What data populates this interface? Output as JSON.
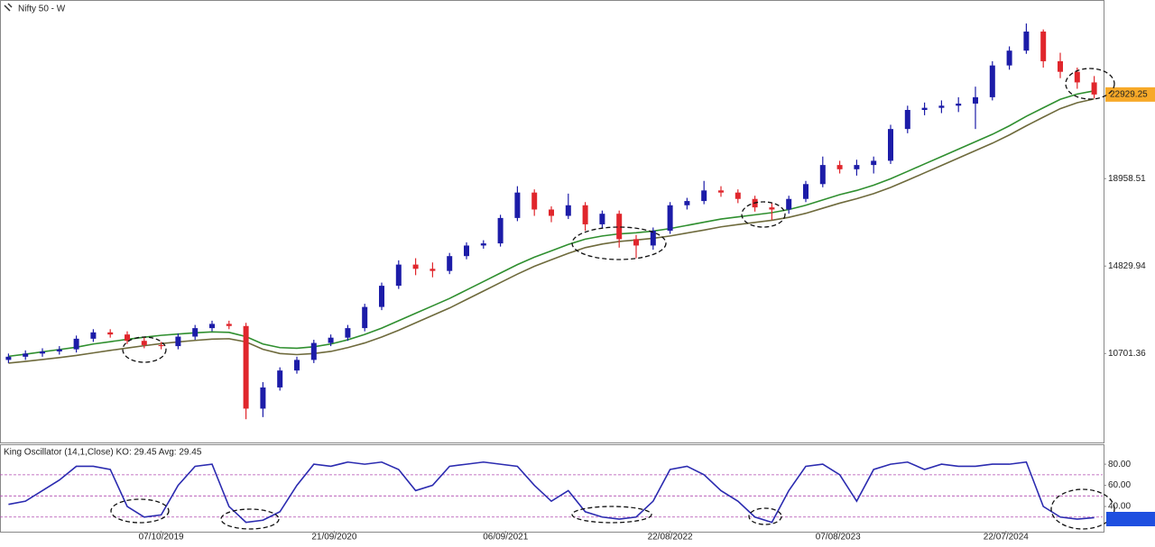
{
  "chart_data": [
    {
      "type": "candlestick",
      "title": "Nifty 50 - W",
      "up_color": "#1c1ca8",
      "down_color": "#e0262c",
      "open": [
        10400,
        10550,
        10700,
        10800,
        10900,
        11400,
        11700,
        11600,
        11300,
        11100,
        11050,
        11500,
        11900,
        12100,
        12000,
        8100,
        9100,
        9900,
        10400,
        11200,
        11450,
        11900,
        12900,
        13900,
        14900,
        14700,
        14600,
        15300,
        15800,
        15900,
        17100,
        18300,
        17500,
        17200,
        17700,
        16800,
        17300,
        16100,
        15800,
        16500,
        17700,
        17900,
        18400,
        18300,
        18000,
        17600,
        17500,
        18000,
        18700,
        19600,
        19400,
        19600,
        19800,
        21300,
        22200,
        22300,
        22400,
        22500,
        22800,
        24300,
        25000,
        25900,
        24500,
        24000,
        23500
      ],
      "high": [
        10700,
        10850,
        10950,
        11050,
        11550,
        11850,
        11850,
        11750,
        11450,
        11250,
        11650,
        12050,
        12250,
        12250,
        12150,
        9350,
        10050,
        10550,
        11350,
        11600,
        12050,
        13050,
        14050,
        15100,
        15200,
        15000,
        15450,
        15950,
        16050,
        17250,
        18600,
        18450,
        17650,
        18250,
        17850,
        17450,
        17450,
        16300,
        16650,
        17850,
        18050,
        18850,
        18600,
        18450,
        18150,
        17800,
        18150,
        18850,
        20000,
        19800,
        19850,
        20000,
        21500,
        22400,
        22550,
        22650,
        22800,
        23300,
        24500,
        25200,
        26280,
        26000,
        24900,
        24200,
        23800
      ],
      "low": [
        10250,
        10400,
        10550,
        10650,
        10750,
        11250,
        11450,
        11150,
        10950,
        10900,
        10900,
        11350,
        11750,
        11850,
        7600,
        7700,
        8950,
        9750,
        10250,
        11050,
        11300,
        11750,
        12750,
        13750,
        14400,
        14300,
        14450,
        15150,
        15650,
        15750,
        16950,
        17200,
        16900,
        17050,
        16500,
        16600,
        15700,
        15200,
        15600,
        16350,
        17500,
        17750,
        18100,
        17800,
        17400,
        17000,
        17300,
        17850,
        18550,
        19200,
        19100,
        19200,
        19650,
        21100,
        21950,
        22050,
        22100,
        21300,
        22650,
        24100,
        24850,
        24200,
        23700,
        23200,
        22750
      ],
      "close": [
        10550,
        10700,
        10800,
        10900,
        11400,
        11700,
        11600,
        11300,
        11100,
        11050,
        11500,
        11900,
        12100,
        12000,
        8100,
        9100,
        9900,
        10400,
        11200,
        11450,
        11900,
        12900,
        13900,
        14900,
        14700,
        14600,
        15300,
        15800,
        15900,
        17100,
        18300,
        17500,
        17200,
        17700,
        16800,
        17300,
        16100,
        15800,
        16500,
        17700,
        17900,
        18400,
        18300,
        18000,
        17600,
        17500,
        18000,
        18700,
        19600,
        19400,
        19600,
        19800,
        21300,
        22200,
        22300,
        22400,
        22500,
        22800,
        24300,
        25000,
        25900,
        24500,
        24000,
        23500,
        22929.25
      ],
      "series": [
        {
          "color": "#2f8f2f",
          "values": [
            10570,
            10670,
            10780,
            10890,
            11000,
            11150,
            11260,
            11370,
            11470,
            11560,
            11620,
            11680,
            11720,
            11700,
            11500,
            11150,
            10980,
            10950,
            11020,
            11150,
            11350,
            11600,
            11900,
            12250,
            12600,
            12950,
            13300,
            13700,
            14100,
            14500,
            14900,
            15250,
            15550,
            15850,
            16100,
            16250,
            16350,
            16400,
            16480,
            16600,
            16750,
            16900,
            17050,
            17150,
            17250,
            17350,
            17500,
            17700,
            17950,
            18200,
            18400,
            18650,
            18950,
            19300,
            19650,
            20000,
            20350,
            20700,
            21050,
            21450,
            21900,
            22300,
            22700,
            22950,
            23100
          ]
        },
        {
          "color": "#6e6a3c",
          "values": [
            10250,
            10330,
            10420,
            10510,
            10610,
            10730,
            10850,
            10960,
            11070,
            11170,
            11250,
            11320,
            11380,
            11400,
            11250,
            10900,
            10700,
            10650,
            10700,
            10800,
            10980,
            11200,
            11480,
            11800,
            12150,
            12500,
            12850,
            13250,
            13650,
            14050,
            14450,
            14820,
            15130,
            15430,
            15700,
            15870,
            15990,
            16060,
            16140,
            16250,
            16390,
            16530,
            16680,
            16790,
            16890,
            16990,
            17130,
            17320,
            17560,
            17800,
            18010,
            18250,
            18540,
            18880,
            19230,
            19580,
            19930,
            20280,
            20630,
            21020,
            21450,
            21860,
            22260,
            22540,
            22720
          ]
        }
      ],
      "ylim": [
        6630,
        27220
      ],
      "yticks": [
        10701.36,
        14829.94,
        18958.51
      ],
      "last_price": 22929.25,
      "last_color": "#f7a928"
    },
    {
      "type": "line",
      "title": "King Oscillator (14,1,Close)  KO: 29.45  Avg: 29.45",
      "color": "#2b2bb0",
      "values": [
        42,
        45,
        55,
        65,
        78,
        78,
        75,
        40,
        30,
        32,
        60,
        78,
        80,
        40,
        25,
        27,
        35,
        60,
        80,
        78,
        82,
        80,
        82,
        75,
        55,
        60,
        78,
        80,
        82,
        80,
        78,
        60,
        45,
        55,
        35,
        30,
        28,
        30,
        45,
        75,
        78,
        70,
        55,
        45,
        30,
        25,
        55,
        78,
        80,
        70,
        45,
        75,
        80,
        82,
        75,
        80,
        78,
        78,
        80,
        80,
        82,
        40,
        30,
        28,
        29.45
      ],
      "levels": [
        70,
        50,
        30
      ],
      "level_color": "#b04ab0",
      "ylim": [
        17,
        98
      ],
      "yticks": [
        {
          "value": 40,
          "label": "40.00"
        },
        {
          "value": 60,
          "label": "60.00"
        },
        {
          "value": 80,
          "label": "80.00"
        }
      ],
      "xticks": [
        {
          "value": 9,
          "label": "07/10/2019"
        },
        {
          "value": 19.2,
          "label": "21/09/2020"
        },
        {
          "value": 29.3,
          "label": "06/09/2021"
        },
        {
          "value": 39,
          "label": "22/08/2022"
        },
        {
          "value": 48.9,
          "label": "07/08/2023"
        },
        {
          "value": 58.8,
          "label": "22/07/2024"
        }
      ]
    }
  ]
}
